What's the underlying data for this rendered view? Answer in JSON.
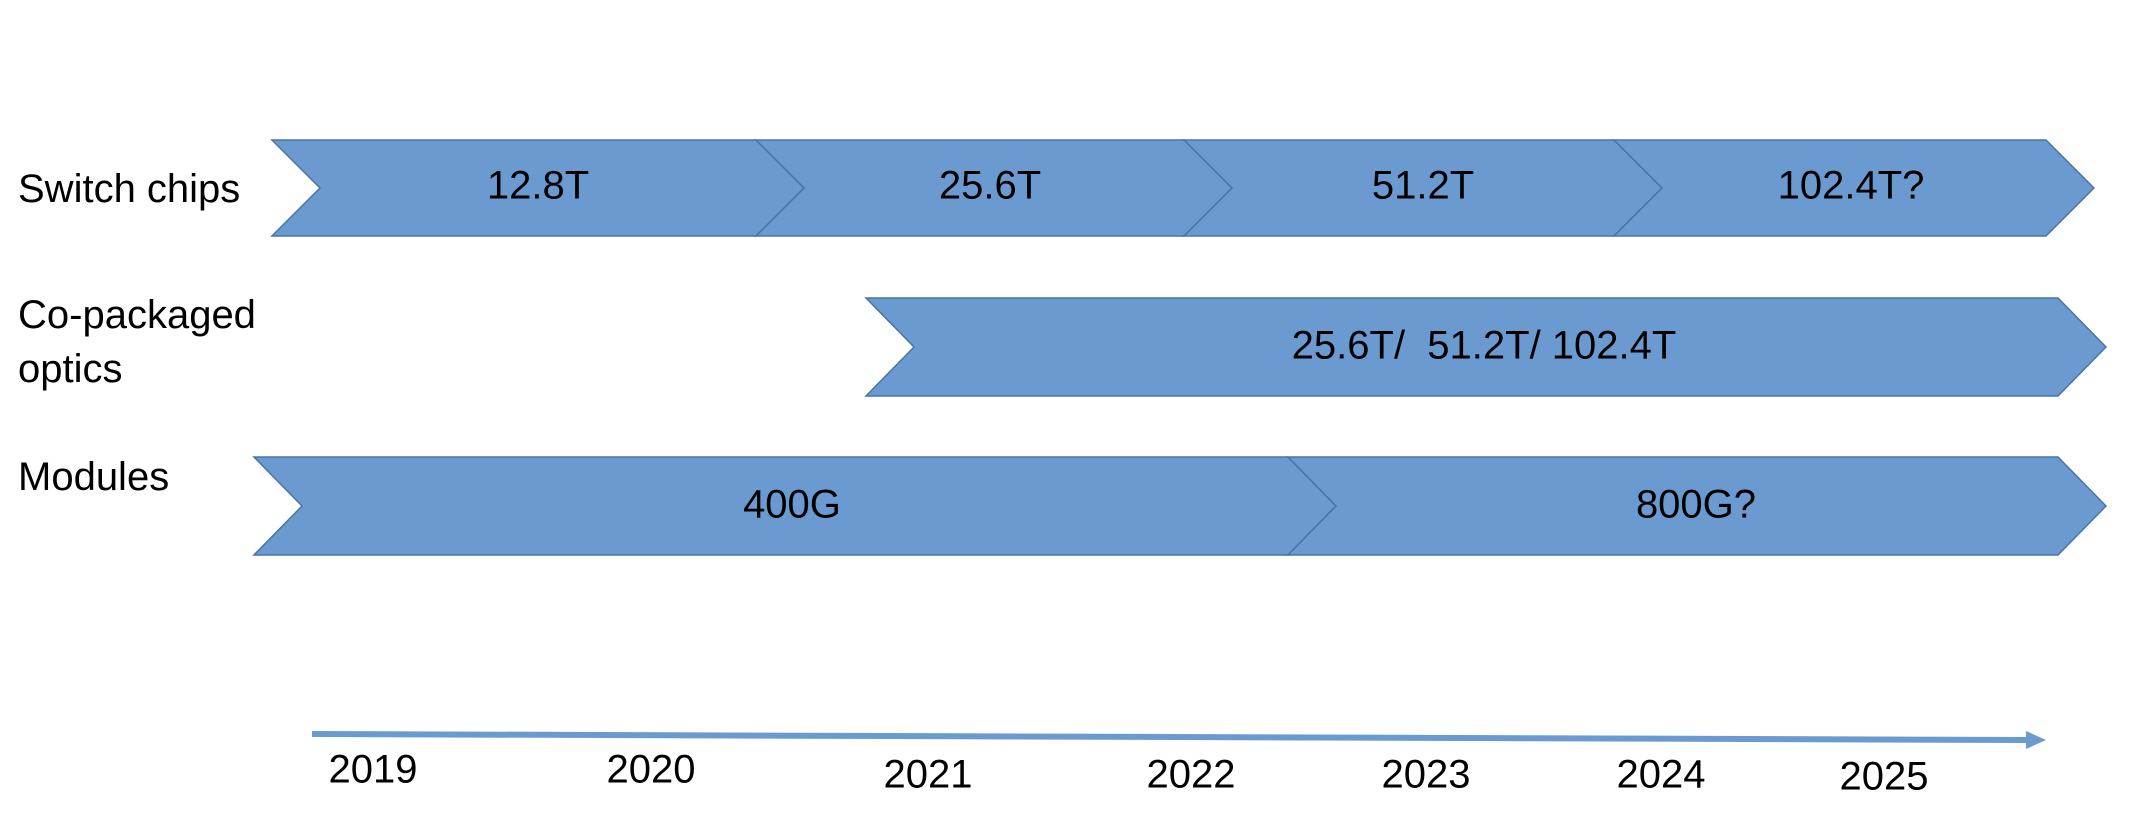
{
  "rows": [
    {
      "label_lines": [
        "Switch chips"
      ]
    },
    {
      "label_lines": [
        "Co-packaged",
        "optics"
      ]
    },
    {
      "label_lines": [
        "Modules"
      ]
    }
  ],
  "switch_chips": {
    "segments": [
      "12.8T",
      "25.6T",
      "51.2T",
      "102.4T?"
    ]
  },
  "co_packaged_optics": {
    "segments": [
      "25.6T/  51.2T/ 102.4T"
    ]
  },
  "modules": {
    "segments": [
      "400G",
      "800G?"
    ]
  },
  "timeline": {
    "years": [
      "2019",
      "2020",
      "2021",
      "2022",
      "2023",
      "2024",
      "2025"
    ]
  },
  "colors": {
    "arrow_fill": "#6A9ACF",
    "arrow_stroke": "#4A74A6",
    "timeline": "#6A9ACF"
  }
}
